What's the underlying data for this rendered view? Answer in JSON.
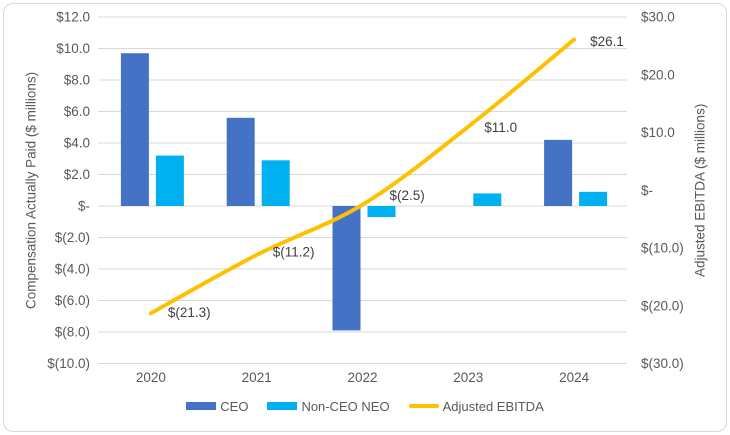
{
  "chart_data": {
    "type": "combo",
    "categories": [
      "2020",
      "2021",
      "2022",
      "2023",
      "2024"
    ],
    "series": [
      {
        "name": "CEO",
        "type": "bar",
        "axis": "left",
        "color": "#4472C4",
        "values": [
          9.7,
          5.6,
          -7.9,
          0,
          4.2
        ]
      },
      {
        "name": "Non-CEO NEO",
        "type": "bar",
        "axis": "left",
        "color": "#00B0F0",
        "values": [
          3.2,
          2.9,
          -0.7,
          0.8,
          0.9
        ]
      },
      {
        "name": "Adjusted EBITDA",
        "type": "line",
        "axis": "right",
        "color": "#FFC000",
        "values": [
          -21.3,
          -11.2,
          -2.5,
          11.0,
          26.1
        ],
        "labels": [
          "$(21.3)",
          "$(11.2)",
          "$(2.5)",
          "$11.0",
          "$26.1"
        ]
      }
    ],
    "left_axis": {
      "title": "Compensation Actually Paid ($ millions)",
      "min": -10,
      "max": 12,
      "step": 2,
      "tick_labels": [
        "$12.0",
        "$10.0",
        "$8.0",
        "$6.0",
        "$4.0",
        "$2.0",
        "$-",
        "$(2.0)",
        "$(4.0)",
        "$(6.0)",
        "$(8.0)",
        "$(10.0)"
      ]
    },
    "right_axis": {
      "title": "Adjusted EBITDA ($ millions)",
      "min": -30,
      "max": 30,
      "step": 10,
      "tick_labels": [
        "$30.0",
        "$20.0",
        "$10.0",
        "$-",
        "$(10.0)",
        "$(20.0)",
        "$(30.0)"
      ]
    },
    "legend": {
      "position": "bottom",
      "items": [
        "CEO",
        "Non-CEO NEO",
        "Adjusted EBITDA"
      ]
    },
    "grid": "horizontal",
    "colors": {
      "gridline": "#D9D9D9",
      "axis_text": "#595959",
      "data_label": "#3F3F3F",
      "background": "#FFFFFF",
      "border": "#D8D8D8"
    }
  }
}
